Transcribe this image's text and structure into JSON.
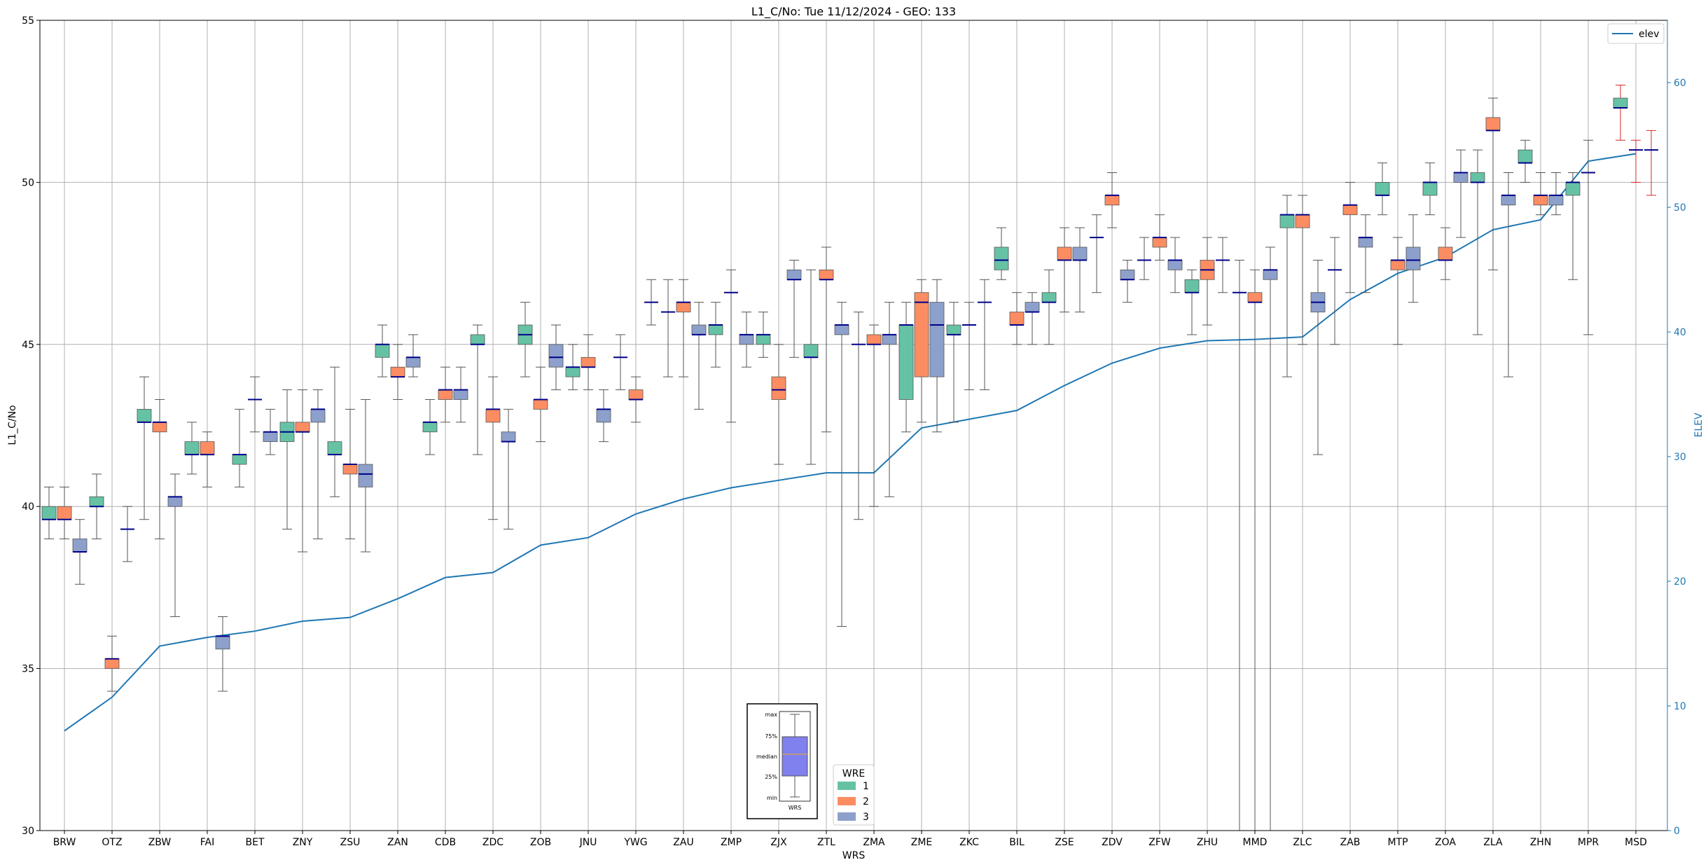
{
  "chart_data": {
    "type": "box",
    "title": "L1_C/No: Tue 11/12/2024 - GEO: 133",
    "xlabel": "WRS",
    "ylabel": "L1_C/No",
    "y2label": "ELEV",
    "ylim": [
      30,
      55
    ],
    "y2lim": [
      0,
      65
    ],
    "yticks": [
      30,
      35,
      40,
      45,
      50,
      55
    ],
    "y2ticks": [
      0,
      10,
      20,
      30,
      40,
      50,
      60
    ],
    "categories": [
      "BRW",
      "OTZ",
      "ZBW",
      "FAI",
      "BET",
      "ZNY",
      "ZSU",
      "ZAN",
      "CDB",
      "ZDC",
      "ZOB",
      "JNU",
      "YWG",
      "ZAU",
      "ZMP",
      "ZJX",
      "ZTL",
      "ZMA",
      "ZME",
      "ZKC",
      "BIL",
      "ZSE",
      "ZDV",
      "ZFW",
      "ZHU",
      "MMD",
      "ZLC",
      "ZAB",
      "MTP",
      "ZOA",
      "ZLA",
      "ZHN",
      "MPR",
      "MSD"
    ],
    "colors": {
      "wre1": "#66c2a5",
      "wre2": "#fc8d62",
      "wre3": "#8da0cb",
      "median": "#00008b",
      "whisker": "#555555",
      "elev": "#1f77b4",
      "outlier_whisker": "#d62728"
    },
    "boxes": [
      {
        "station": "BRW",
        "wre": 1,
        "min": 39.0,
        "q1": 39.6,
        "median": 39.6,
        "q3": 40.0,
        "max": 40.6
      },
      {
        "station": "BRW",
        "wre": 2,
        "min": 39.0,
        "q1": 39.6,
        "median": 39.6,
        "q3": 40.0,
        "max": 40.6
      },
      {
        "station": "BRW",
        "wre": 3,
        "min": 37.6,
        "q1": 38.6,
        "median": 38.6,
        "q3": 39.0,
        "max": 39.6
      },
      {
        "station": "OTZ",
        "wre": 1,
        "min": 39.0,
        "q1": 40.0,
        "median": 40.0,
        "q3": 40.3,
        "max": 41.0
      },
      {
        "station": "OTZ",
        "wre": 2,
        "min": 34.3,
        "q1": 35.0,
        "median": 35.3,
        "q3": 35.3,
        "max": 36.0
      },
      {
        "station": "OTZ",
        "wre": 3,
        "min": 38.3,
        "q1": 39.3,
        "median": 39.3,
        "q3": 39.3,
        "max": 40.0
      },
      {
        "station": "ZBW",
        "wre": 1,
        "min": 39.6,
        "q1": 42.6,
        "median": 42.6,
        "q3": 43.0,
        "max": 44.0
      },
      {
        "station": "ZBW",
        "wre": 2,
        "min": 39.0,
        "q1": 42.3,
        "median": 42.6,
        "q3": 42.6,
        "max": 43.3
      },
      {
        "station": "ZBW",
        "wre": 3,
        "min": 36.6,
        "q1": 40.0,
        "median": 40.3,
        "q3": 40.3,
        "max": 41.0
      },
      {
        "station": "FAI",
        "wre": 1,
        "min": 41.0,
        "q1": 41.6,
        "median": 41.6,
        "q3": 42.0,
        "max": 42.6
      },
      {
        "station": "FAI",
        "wre": 2,
        "min": 40.6,
        "q1": 41.6,
        "median": 41.6,
        "q3": 42.0,
        "max": 42.3
      },
      {
        "station": "FAI",
        "wre": 3,
        "min": 34.3,
        "q1": 35.6,
        "median": 36.0,
        "q3": 36.0,
        "max": 36.6
      },
      {
        "station": "BET",
        "wre": 1,
        "min": 40.6,
        "q1": 41.3,
        "median": 41.6,
        "q3": 41.6,
        "max": 43.0
      },
      {
        "station": "BET",
        "wre": 2,
        "min": 42.3,
        "q1": 43.3,
        "median": 43.3,
        "q3": 43.3,
        "max": 44.0
      },
      {
        "station": "BET",
        "wre": 3,
        "min": 41.6,
        "q1": 42.0,
        "median": 42.3,
        "q3": 42.3,
        "max": 43.0
      },
      {
        "station": "ZNY",
        "wre": 1,
        "min": 39.3,
        "q1": 42.0,
        "median": 42.3,
        "q3": 42.6,
        "max": 43.6
      },
      {
        "station": "ZNY",
        "wre": 2,
        "min": 38.6,
        "q1": 42.3,
        "median": 42.3,
        "q3": 42.6,
        "max": 43.6
      },
      {
        "station": "ZNY",
        "wre": 3,
        "min": 39.0,
        "q1": 42.6,
        "median": 43.0,
        "q3": 43.0,
        "max": 43.6
      },
      {
        "station": "ZSU",
        "wre": 1,
        "min": 40.3,
        "q1": 41.6,
        "median": 41.6,
        "q3": 42.0,
        "max": 44.3
      },
      {
        "station": "ZSU",
        "wre": 2,
        "min": 39.0,
        "q1": 41.0,
        "median": 41.3,
        "q3": 41.3,
        "max": 43.0
      },
      {
        "station": "ZSU",
        "wre": 3,
        "min": 38.6,
        "q1": 40.6,
        "median": 41.0,
        "q3": 41.3,
        "max": 43.3
      },
      {
        "station": "ZAN",
        "wre": 1,
        "min": 44.0,
        "q1": 44.6,
        "median": 45.0,
        "q3": 45.0,
        "max": 45.6
      },
      {
        "station": "ZAN",
        "wre": 2,
        "min": 43.3,
        "q1": 44.0,
        "median": 44.0,
        "q3": 44.3,
        "max": 45.0
      },
      {
        "station": "ZAN",
        "wre": 3,
        "min": 44.0,
        "q1": 44.3,
        "median": 44.6,
        "q3": 44.6,
        "max": 45.3
      },
      {
        "station": "CDB",
        "wre": 1,
        "min": 41.6,
        "q1": 42.3,
        "median": 42.6,
        "q3": 42.6,
        "max": 43.3
      },
      {
        "station": "CDB",
        "wre": 2,
        "min": 42.6,
        "q1": 43.3,
        "median": 43.6,
        "q3": 43.6,
        "max": 44.3
      },
      {
        "station": "CDB",
        "wre": 3,
        "min": 42.6,
        "q1": 43.3,
        "median": 43.6,
        "q3": 43.6,
        "max": 44.3
      },
      {
        "station": "ZDC",
        "wre": 1,
        "min": 41.6,
        "q1": 45.0,
        "median": 45.0,
        "q3": 45.3,
        "max": 45.6
      },
      {
        "station": "ZDC",
        "wre": 2,
        "min": 39.6,
        "q1": 42.6,
        "median": 43.0,
        "q3": 43.0,
        "max": 44.0
      },
      {
        "station": "ZDC",
        "wre": 3,
        "min": 39.3,
        "q1": 42.0,
        "median": 42.0,
        "q3": 42.3,
        "max": 43.0
      },
      {
        "station": "ZOB",
        "wre": 1,
        "min": 44.0,
        "q1": 45.0,
        "median": 45.3,
        "q3": 45.6,
        "max": 46.3
      },
      {
        "station": "ZOB",
        "wre": 2,
        "min": 42.0,
        "q1": 43.0,
        "median": 43.3,
        "q3": 43.3,
        "max": 44.3
      },
      {
        "station": "ZOB",
        "wre": 3,
        "min": 43.6,
        "q1": 44.3,
        "median": 44.6,
        "q3": 45.0,
        "max": 45.6
      },
      {
        "station": "JNU",
        "wre": 1,
        "min": 43.6,
        "q1": 44.0,
        "median": 44.3,
        "q3": 44.3,
        "max": 45.0
      },
      {
        "station": "JNU",
        "wre": 2,
        "min": 43.6,
        "q1": 44.3,
        "median": 44.3,
        "q3": 44.6,
        "max": 45.3
      },
      {
        "station": "JNU",
        "wre": 3,
        "min": 42.0,
        "q1": 42.6,
        "median": 43.0,
        "q3": 43.0,
        "max": 43.6
      },
      {
        "station": "YWG",
        "wre": 1,
        "min": 43.6,
        "q1": 44.6,
        "median": 44.6,
        "q3": 44.6,
        "max": 45.3
      },
      {
        "station": "YWG",
        "wre": 2,
        "min": 42.6,
        "q1": 43.3,
        "median": 43.3,
        "q3": 43.6,
        "max": 44.0
      },
      {
        "station": "YWG",
        "wre": 3,
        "min": 45.6,
        "q1": 46.3,
        "median": 46.3,
        "q3": 46.3,
        "max": 47.0
      },
      {
        "station": "ZAU",
        "wre": 1,
        "min": 44.0,
        "q1": 46.0,
        "median": 46.0,
        "q3": 46.0,
        "max": 47.0
      },
      {
        "station": "ZAU",
        "wre": 2,
        "min": 44.0,
        "q1": 46.0,
        "median": 46.3,
        "q3": 46.3,
        "max": 47.0
      },
      {
        "station": "ZAU",
        "wre": 3,
        "min": 43.0,
        "q1": 45.3,
        "median": 45.3,
        "q3": 45.6,
        "max": 46.3
      },
      {
        "station": "ZMP",
        "wre": 1,
        "min": 44.3,
        "q1": 45.3,
        "median": 45.6,
        "q3": 45.6,
        "max": 46.3
      },
      {
        "station": "ZMP",
        "wre": 2,
        "min": 42.6,
        "q1": 46.6,
        "median": 46.6,
        "q3": 46.6,
        "max": 47.3
      },
      {
        "station": "ZMP",
        "wre": 3,
        "min": 44.3,
        "q1": 45.0,
        "median": 45.3,
        "q3": 45.3,
        "max": 46.0
      },
      {
        "station": "ZJX",
        "wre": 1,
        "min": 44.6,
        "q1": 45.0,
        "median": 45.3,
        "q3": 45.3,
        "max": 46.0
      },
      {
        "station": "ZJX",
        "wre": 2,
        "min": 41.3,
        "q1": 43.3,
        "median": 43.6,
        "q3": 44.0,
        "max": 45.0
      },
      {
        "station": "ZJX",
        "wre": 3,
        "min": 44.6,
        "q1": 47.0,
        "median": 47.0,
        "q3": 47.3,
        "max": 47.6
      },
      {
        "station": "ZTL",
        "wre": 1,
        "min": 41.3,
        "q1": 44.6,
        "median": 44.6,
        "q3": 45.0,
        "max": 47.3
      },
      {
        "station": "ZTL",
        "wre": 2,
        "min": 42.3,
        "q1": 47.0,
        "median": 47.0,
        "q3": 47.3,
        "max": 48.0
      },
      {
        "station": "ZTL",
        "wre": 3,
        "min": 36.3,
        "q1": 45.3,
        "median": 45.6,
        "q3": 45.6,
        "max": 46.3
      },
      {
        "station": "ZMA",
        "wre": 1,
        "min": 39.6,
        "q1": 45.0,
        "median": 45.0,
        "q3": 45.0,
        "max": 46.0
      },
      {
        "station": "ZMA",
        "wre": 2,
        "min": 40.0,
        "q1": 45.0,
        "median": 45.0,
        "q3": 45.3,
        "max": 45.6
      },
      {
        "station": "ZMA",
        "wre": 3,
        "min": 40.3,
        "q1": 45.0,
        "median": 45.3,
        "q3": 45.3,
        "max": 46.3
      },
      {
        "station": "ZME",
        "wre": 1,
        "min": 42.3,
        "q1": 43.3,
        "median": 45.6,
        "q3": 45.6,
        "max": 46.3
      },
      {
        "station": "ZME",
        "wre": 2,
        "min": 42.6,
        "q1": 44.0,
        "median": 46.3,
        "q3": 46.6,
        "max": 47.0
      },
      {
        "station": "ZME",
        "wre": 3,
        "min": 42.3,
        "q1": 44.0,
        "median": 45.6,
        "q3": 46.3,
        "max": 47.0
      },
      {
        "station": "ZKC",
        "wre": 1,
        "min": 42.6,
        "q1": 45.3,
        "median": 45.3,
        "q3": 45.6,
        "max": 46.3
      },
      {
        "station": "ZKC",
        "wre": 2,
        "min": 43.6,
        "q1": 45.6,
        "median": 45.6,
        "q3": 45.6,
        "max": 46.3
      },
      {
        "station": "ZKC",
        "wre": 3,
        "min": 43.6,
        "q1": 46.3,
        "median": 46.3,
        "q3": 46.3,
        "max": 47.0
      },
      {
        "station": "BIL",
        "wre": 1,
        "min": 47.0,
        "q1": 47.3,
        "median": 47.6,
        "q3": 48.0,
        "max": 48.6
      },
      {
        "station": "BIL",
        "wre": 2,
        "min": 45.0,
        "q1": 45.6,
        "median": 45.6,
        "q3": 46.0,
        "max": 46.6
      },
      {
        "station": "BIL",
        "wre": 3,
        "min": 45.0,
        "q1": 46.0,
        "median": 46.0,
        "q3": 46.3,
        "max": 46.6
      },
      {
        "station": "ZSE",
        "wre": 1,
        "min": 45.0,
        "q1": 46.3,
        "median": 46.3,
        "q3": 46.6,
        "max": 47.3
      },
      {
        "station": "ZSE",
        "wre": 2,
        "min": 46.0,
        "q1": 47.6,
        "median": 47.6,
        "q3": 48.0,
        "max": 48.6
      },
      {
        "station": "ZSE",
        "wre": 3,
        "min": 46.0,
        "q1": 47.6,
        "median": 47.6,
        "q3": 48.0,
        "max": 48.6
      },
      {
        "station": "ZDV",
        "wre": 1,
        "min": 46.6,
        "q1": 48.3,
        "median": 48.3,
        "q3": 48.3,
        "max": 49.0
      },
      {
        "station": "ZDV",
        "wre": 2,
        "min": 48.6,
        "q1": 49.3,
        "median": 49.6,
        "q3": 49.6,
        "max": 50.3
      },
      {
        "station": "ZDV",
        "wre": 3,
        "min": 46.3,
        "q1": 47.0,
        "median": 47.0,
        "q3": 47.3,
        "max": 47.6
      },
      {
        "station": "ZFW",
        "wre": 1,
        "min": 47.0,
        "q1": 47.6,
        "median": 47.6,
        "q3": 47.6,
        "max": 48.3
      },
      {
        "station": "ZFW",
        "wre": 2,
        "min": 47.6,
        "q1": 48.0,
        "median": 48.3,
        "q3": 48.3,
        "max": 49.0
      },
      {
        "station": "ZFW",
        "wre": 3,
        "min": 46.6,
        "q1": 47.3,
        "median": 47.6,
        "q3": 47.6,
        "max": 48.3
      },
      {
        "station": "ZHU",
        "wre": 1,
        "min": 45.3,
        "q1": 46.6,
        "median": 46.6,
        "q3": 47.0,
        "max": 47.3
      },
      {
        "station": "ZHU",
        "wre": 2,
        "min": 45.6,
        "q1": 47.0,
        "median": 47.3,
        "q3": 47.6,
        "max": 48.3
      },
      {
        "station": "ZHU",
        "wre": 3,
        "min": 46.6,
        "q1": 47.6,
        "median": 47.6,
        "q3": 47.6,
        "max": 48.3
      },
      {
        "station": "MMD",
        "wre": 1,
        "min": 30.0,
        "q1": 46.6,
        "median": 46.6,
        "q3": 46.6,
        "max": 47.6
      },
      {
        "station": "MMD",
        "wre": 2,
        "min": 30.0,
        "q1": 46.3,
        "median": 46.3,
        "q3": 46.6,
        "max": 47.3
      },
      {
        "station": "MMD",
        "wre": 3,
        "min": 30.0,
        "q1": 47.0,
        "median": 47.3,
        "q3": 47.3,
        "max": 48.0
      },
      {
        "station": "ZLC",
        "wre": 1,
        "min": 44.0,
        "q1": 48.6,
        "median": 49.0,
        "q3": 49.0,
        "max": 49.6
      },
      {
        "station": "ZLC",
        "wre": 2,
        "min": 45.0,
        "q1": 48.6,
        "median": 49.0,
        "q3": 49.0,
        "max": 49.6
      },
      {
        "station": "ZLC",
        "wre": 3,
        "min": 41.6,
        "q1": 46.0,
        "median": 46.3,
        "q3": 46.6,
        "max": 47.6
      },
      {
        "station": "ZAB",
        "wre": 1,
        "min": 45.0,
        "q1": 47.3,
        "median": 47.3,
        "q3": 47.3,
        "max": 48.3
      },
      {
        "station": "ZAB",
        "wre": 2,
        "min": 46.6,
        "q1": 49.0,
        "median": 49.3,
        "q3": 49.3,
        "max": 50.0
      },
      {
        "station": "ZAB",
        "wre": 3,
        "min": 46.6,
        "q1": 48.0,
        "median": 48.3,
        "q3": 48.3,
        "max": 49.0
      },
      {
        "station": "MTP",
        "wre": 1,
        "min": 49.0,
        "q1": 49.6,
        "median": 49.6,
        "q3": 50.0,
        "max": 50.6
      },
      {
        "station": "MTP",
        "wre": 2,
        "min": 45.0,
        "q1": 47.3,
        "median": 47.6,
        "q3": 47.6,
        "max": 48.3
      },
      {
        "station": "MTP",
        "wre": 3,
        "min": 46.3,
        "q1": 47.3,
        "median": 47.6,
        "q3": 48.0,
        "max": 49.0
      },
      {
        "station": "ZOA",
        "wre": 1,
        "min": 49.0,
        "q1": 49.6,
        "median": 50.0,
        "q3": 50.0,
        "max": 50.6
      },
      {
        "station": "ZOA",
        "wre": 2,
        "min": 47.0,
        "q1": 47.6,
        "median": 47.6,
        "q3": 48.0,
        "max": 48.6
      },
      {
        "station": "ZOA",
        "wre": 3,
        "min": 48.3,
        "q1": 50.0,
        "median": 50.3,
        "q3": 50.3,
        "max": 51.0
      },
      {
        "station": "ZLA",
        "wre": 1,
        "min": 45.3,
        "q1": 50.0,
        "median": 50.0,
        "q3": 50.3,
        "max": 51.0
      },
      {
        "station": "ZLA",
        "wre": 2,
        "min": 47.3,
        "q1": 51.6,
        "median": 51.6,
        "q3": 52.0,
        "max": 52.6
      },
      {
        "station": "ZLA",
        "wre": 3,
        "min": 44.0,
        "q1": 49.3,
        "median": 49.6,
        "q3": 49.6,
        "max": 50.3
      },
      {
        "station": "ZHN",
        "wre": 1,
        "min": 50.0,
        "q1": 50.6,
        "median": 50.6,
        "q3": 51.0,
        "max": 51.3
      },
      {
        "station": "ZHN",
        "wre": 2,
        "min": 49.0,
        "q1": 49.3,
        "median": 49.6,
        "q3": 49.6,
        "max": 50.3
      },
      {
        "station": "ZHN",
        "wre": 3,
        "min": 49.0,
        "q1": 49.3,
        "median": 49.6,
        "q3": 49.6,
        "max": 50.3
      },
      {
        "station": "MPR",
        "wre": 1,
        "min": 47.0,
        "q1": 49.6,
        "median": 50.0,
        "q3": 50.0,
        "max": 50.3
      },
      {
        "station": "MPR",
        "wre": 2,
        "min": 45.3,
        "q1": 50.3,
        "median": 50.3,
        "q3": 50.3,
        "max": 51.3
      },
      {
        "station": "MSD",
        "wre": 1,
        "min": 51.3,
        "q1": 52.3,
        "median": 52.3,
        "q3": 52.6,
        "max": 53.0
      },
      {
        "station": "MSD",
        "wre": 2,
        "min": 50.0,
        "q1": 51.0,
        "median": 51.0,
        "q3": 51.0,
        "max": 51.3
      },
      {
        "station": "MSD",
        "wre": 3,
        "min": 49.6,
        "q1": 51.0,
        "median": 51.0,
        "q3": 51.0,
        "max": 51.6
      }
    ],
    "elev": {
      "name": "elev",
      "values": [
        8.0,
        10.7,
        14.8,
        15.5,
        16.0,
        16.8,
        17.1,
        18.6,
        20.3,
        20.7,
        22.9,
        23.5,
        25.4,
        26.6,
        27.5,
        28.1,
        28.7,
        28.7,
        32.3,
        33.0,
        33.7,
        35.7,
        37.5,
        38.7,
        39.3,
        39.4,
        39.6,
        42.6,
        44.7,
        46.0,
        48.2,
        49.0,
        53.7,
        54.3
      ]
    },
    "legend": {
      "title": "WRE",
      "labels": [
        "1",
        "2",
        "3"
      ],
      "elev_label": "elev",
      "position": "lower-center"
    },
    "inset": {
      "labels": [
        "max",
        "75%",
        "median",
        "25%",
        "min"
      ],
      "xlabel": "WRS"
    }
  }
}
